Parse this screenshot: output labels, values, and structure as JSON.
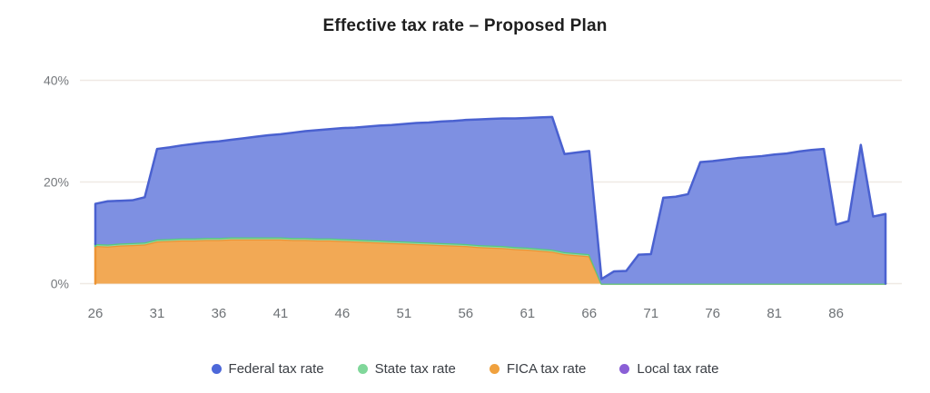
{
  "page": {
    "background": "#ffffff"
  },
  "chart_data": {
    "type": "area",
    "stacked": true,
    "title": "Effective tax rate – Proposed Plan",
    "xlabel": "",
    "ylabel": "",
    "grid": true,
    "legend_position": "bottom",
    "grid_color": "#efe9e4",
    "x": [
      26,
      27,
      28,
      29,
      30,
      31,
      32,
      33,
      34,
      35,
      36,
      37,
      38,
      39,
      40,
      41,
      42,
      43,
      44,
      45,
      46,
      47,
      48,
      49,
      50,
      51,
      52,
      53,
      54,
      55,
      56,
      57,
      58,
      59,
      60,
      61,
      62,
      63,
      64,
      65,
      66,
      67,
      68,
      69,
      70,
      71,
      72,
      73,
      74,
      75,
      76,
      77,
      78,
      79,
      80,
      81,
      82,
      83,
      84,
      85,
      86,
      87,
      88,
      89,
      90
    ],
    "x_ticks": [
      26,
      31,
      36,
      41,
      46,
      51,
      56,
      61,
      66,
      71,
      76,
      81,
      86
    ],
    "y_ticks": [
      {
        "value": 0,
        "label": "0%"
      },
      {
        "value": 20,
        "label": "20%"
      },
      {
        "value": 40,
        "label": "40%"
      }
    ],
    "ylim": [
      0,
      44
    ],
    "unit": "%",
    "stack_bottom_to_top": [
      "FICA tax rate",
      "State tax rate",
      "Federal tax rate",
      "Local tax rate"
    ],
    "series": [
      {
        "name": "Federal tax rate",
        "dot_color": "#4d68d9",
        "fill_color": "#7e90e2",
        "edge_color": "#4a61d0",
        "values": [
          7.9,
          8.5,
          8.4,
          8.4,
          8.9,
          17.8,
          18.0,
          18.3,
          18.6,
          18.8,
          19.0,
          19.2,
          19.5,
          19.8,
          20.1,
          20.3,
          20.7,
          21.0,
          21.3,
          21.5,
          21.8,
          22.0,
          22.3,
          22.6,
          22.8,
          23.1,
          23.4,
          23.6,
          23.9,
          24.1,
          24.4,
          24.7,
          24.9,
          25.1,
          25.3,
          25.5,
          25.8,
          26.1,
          19.3,
          19.8,
          20.3,
          0.9,
          2.4,
          2.5,
          5.7,
          5.8,
          16.9,
          17.1,
          17.6,
          23.9,
          24.1,
          24.4,
          24.7,
          24.9,
          25.1,
          25.4,
          25.6,
          26.0,
          26.3,
          26.5,
          11.6,
          12.3,
          27.3,
          13.2,
          13.7
        ]
      },
      {
        "name": "State tax rate",
        "dot_color": "#80d79a",
        "fill_color": "#90d9a3",
        "edge_color": "#59c77d",
        "values": [
          0.4,
          0.4,
          0.4,
          0.4,
          0.4,
          0.4,
          0.4,
          0.4,
          0.4,
          0.4,
          0.4,
          0.4,
          0.4,
          0.4,
          0.4,
          0.4,
          0.4,
          0.4,
          0.4,
          0.4,
          0.4,
          0.4,
          0.4,
          0.4,
          0.4,
          0.4,
          0.4,
          0.4,
          0.4,
          0.4,
          0.4,
          0.4,
          0.4,
          0.4,
          0.4,
          0.4,
          0.4,
          0.4,
          0.4,
          0.4,
          0.4,
          0,
          0,
          0,
          0,
          0,
          0,
          0,
          0,
          0,
          0,
          0,
          0,
          0,
          0,
          0,
          0,
          0,
          0,
          0,
          0,
          0,
          0,
          0,
          0
        ]
      },
      {
        "name": "FICA tax rate",
        "dot_color": "#f0a13e",
        "fill_color": "#f2a955",
        "edge_color": "#ec9434",
        "values": [
          7.4,
          7.3,
          7.5,
          7.6,
          7.7,
          8.3,
          8.4,
          8.5,
          8.5,
          8.6,
          8.6,
          8.7,
          8.7,
          8.7,
          8.7,
          8.7,
          8.6,
          8.6,
          8.5,
          8.5,
          8.4,
          8.3,
          8.2,
          8.1,
          8.0,
          7.9,
          7.8,
          7.7,
          7.6,
          7.5,
          7.4,
          7.2,
          7.1,
          7.0,
          6.8,
          6.7,
          6.5,
          6.3,
          5.8,
          5.6,
          5.4,
          0,
          0,
          0,
          0,
          0,
          0,
          0,
          0,
          0,
          0,
          0,
          0,
          0,
          0,
          0,
          0,
          0,
          0,
          0,
          0,
          0,
          0,
          0,
          0
        ]
      },
      {
        "name": "Local tax rate",
        "dot_color": "#8a5fd6",
        "fill_color": "#a384e0",
        "edge_color": "#7c4fd0",
        "values": [
          0,
          0,
          0,
          0,
          0,
          0,
          0,
          0,
          0,
          0,
          0,
          0,
          0,
          0,
          0,
          0,
          0,
          0,
          0,
          0,
          0,
          0,
          0,
          0,
          0,
          0,
          0,
          0,
          0,
          0,
          0,
          0,
          0,
          0,
          0,
          0,
          0,
          0,
          0,
          0,
          0,
          0,
          0,
          0,
          0,
          0,
          0,
          0,
          0,
          0,
          0,
          0,
          0,
          0,
          0,
          0,
          0,
          0,
          0,
          0,
          0,
          0,
          0,
          0,
          0
        ]
      }
    ]
  }
}
